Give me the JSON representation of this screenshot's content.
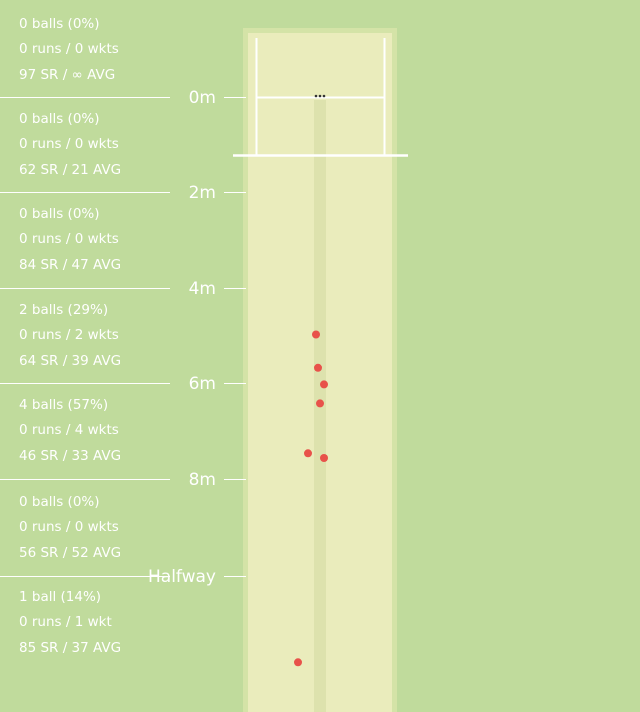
{
  "chart_data": {
    "type": "scatter",
    "description_axis": "pitch length bands from batting crease",
    "markers": [
      "0m",
      "2m",
      "4m",
      "6m",
      "8m",
      "Halfway"
    ],
    "zones": [
      {
        "balls": "0 balls (0%)",
        "runs": "0 runs / 0 wkts",
        "rate": "97 SR / ∞ AVG"
      },
      {
        "balls": "0 balls (0%)",
        "runs": "0 runs / 0 wkts",
        "rate": "62 SR / 21 AVG"
      },
      {
        "balls": "0 balls (0%)",
        "runs": "0 runs / 0 wkts",
        "rate": "84 SR / 47 AVG"
      },
      {
        "balls": "2 balls (29%)",
        "runs": "0 runs / 2 wkts",
        "rate": "64 SR / 39 AVG"
      },
      {
        "balls": "4 balls (57%)",
        "runs": "0 runs / 4 wkts",
        "rate": "46 SR / 33 AVG"
      },
      {
        "balls": "0 balls (0%)",
        "runs": "0 runs / 0 wkts",
        "rate": "56 SR / 52 AVG"
      },
      {
        "balls": "1 ball (14%)",
        "runs": "0 runs / 1 wkt",
        "rate": "85 SR / 37 AVG"
      }
    ],
    "pitch_points": [
      {
        "line": -0.1,
        "length": 5.0
      },
      {
        "line": -0.05,
        "length": 5.7
      },
      {
        "line": 0.1,
        "length": 6.05
      },
      {
        "line": 0.0,
        "length": 6.45
      },
      {
        "line": -0.3,
        "length": 7.5
      },
      {
        "line": 0.1,
        "length": 7.6
      },
      {
        "line": -0.55,
        "length": 11.9
      }
    ],
    "point_color": "#e8524a"
  }
}
